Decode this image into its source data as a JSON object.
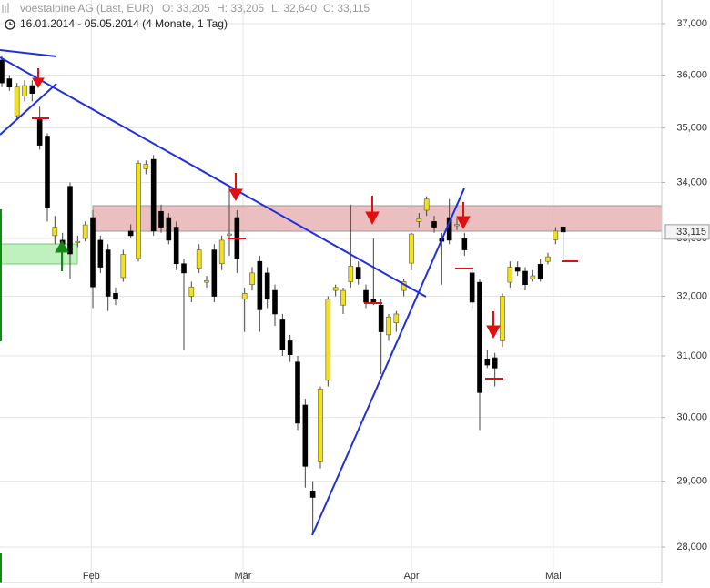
{
  "chart_data": {
    "type": "candlestick",
    "title": "voestalpine AG (Last, EUR)",
    "header_values": [
      "O: 33,205",
      "H: 33,205",
      "L: 32,640",
      "C: 33,115"
    ],
    "subtitle": "16.01.2014 - 05.05.2014 (4 Monate, 1 Tag)",
    "log_scale": true,
    "grid": true,
    "up_color": "#f2e21e",
    "down_color": "#000000",
    "open": [
      36290,
      35930,
      35230,
      35600,
      35800,
      35180,
      34850,
      33050,
      32970,
      33930,
      32950,
      33000,
      33370,
      32970,
      32800,
      32050,
      32320,
      33130,
      32650,
      34250,
      34420,
      33480,
      33370,
      33200,
      32560,
      32000,
      32480,
      32240,
      32800,
      32560,
      33080,
      33370,
      31950,
      32200,
      32600,
      32400,
      32100,
      31600,
      31250,
      30900,
      30200,
      28850,
      29300,
      30600,
      32100,
      31850,
      32250,
      32500,
      32100,
      31950,
      31850,
      31350,
      31550,
      32100,
      32570,
      33300,
      33500,
      33300,
      33000,
      33370,
      33250,
      33000,
      32400,
      32240,
      30950,
      30970,
      31250,
      32240,
      32500,
      32430,
      32300,
      32550,
      32600,
      32980,
      33205
    ],
    "high": [
      36380,
      36000,
      35850,
      35900,
      35900,
      35400,
      34900,
      33400,
      33100,
      34000,
      33050,
      33300,
      33500,
      33050,
      32900,
      32150,
      32800,
      33250,
      34400,
      34400,
      34500,
      33600,
      33450,
      33300,
      32650,
      32250,
      32900,
      32350,
      32900,
      33050,
      33900,
      33500,
      32150,
      32500,
      32700,
      32500,
      32200,
      31700,
      31350,
      31000,
      30300,
      29000,
      30500,
      32000,
      32200,
      32150,
      33600,
      32600,
      32200,
      33000,
      31950,
      31700,
      31750,
      32300,
      33100,
      33450,
      33750,
      33400,
      33100,
      33700,
      33350,
      33100,
      32500,
      32300,
      31100,
      31050,
      32050,
      32600,
      32600,
      32500,
      32450,
      32650,
      32750,
      33200,
      33205
    ],
    "low": [
      35770,
      35700,
      35150,
      35500,
      35500,
      34600,
      33300,
      32900,
      32500,
      32300,
      32850,
      32950,
      31800,
      32400,
      31750,
      31850,
      32250,
      33000,
      32600,
      34150,
      33050,
      33100,
      32900,
      32450,
      31100,
      31900,
      32400,
      32150,
      31900,
      32450,
      32700,
      32400,
      31400,
      32100,
      31400,
      31800,
      31500,
      31000,
      30900,
      29800,
      28900,
      28200,
      29200,
      30500,
      32000,
      31700,
      32150,
      32200,
      31800,
      31850,
      30700,
      31250,
      31400,
      32000,
      32450,
      33200,
      33400,
      33100,
      32200,
      32900,
      33150,
      32700,
      31800,
      29800,
      30800,
      30500,
      31150,
      32150,
      32350,
      32100,
      32250,
      32250,
      32550,
      32900,
      32640
    ],
    "close": [
      35850,
      35770,
      35770,
      35800,
      35650,
      34680,
      33550,
      33200,
      32900,
      32730,
      32950,
      33240,
      32160,
      32500,
      32000,
      31950,
      32720,
      33050,
      34350,
      34330,
      33130,
      33200,
      32970,
      32560,
      32400,
      32160,
      32800,
      32270,
      32000,
      32970,
      33080,
      32650,
      32050,
      32400,
      31770,
      31950,
      31700,
      31100,
      31020,
      29910,
      29230,
      28750,
      30460,
      31950,
      32150,
      32100,
      32520,
      32300,
      31900,
      31900,
      31400,
      31650,
      31700,
      32250,
      33080,
      33350,
      33700,
      33200,
      32950,
      32970,
      33250,
      32800,
      31900,
      30400,
      30850,
      30800,
      32000,
      32500,
      32430,
      32200,
      32350,
      32300,
      32680,
      33130,
      33115
    ],
    "xlim": [
      -0.24,
      87.0
    ],
    "xticks": [
      {
        "value": 11.8,
        "label": "Feb"
      },
      {
        "value": 31.8,
        "label": "Mär"
      },
      {
        "value": 54.0,
        "label": "Apr"
      },
      {
        "value": 72.7,
        "label": "Mai"
      }
    ],
    "ylim": [
      27476,
      37469
    ],
    "yticks": [
      {
        "value": 28000,
        "label": "28,000"
      },
      {
        "value": 29000,
        "label": "29,000"
      },
      {
        "value": 30000,
        "label": "30,000"
      },
      {
        "value": 31000,
        "label": "31,000"
      },
      {
        "value": 32000,
        "label": "32,000"
      },
      {
        "value": 33000,
        "label": "33,000"
      },
      {
        "value": 34000,
        "label": "34,000"
      },
      {
        "value": 35000,
        "label": "35,000"
      },
      {
        "value": 36000,
        "label": "36,000"
      },
      {
        "value": 37000,
        "label": "37,000"
      }
    ],
    "last_price": {
      "value": 33115,
      "label": "33,115"
    }
  }
}
